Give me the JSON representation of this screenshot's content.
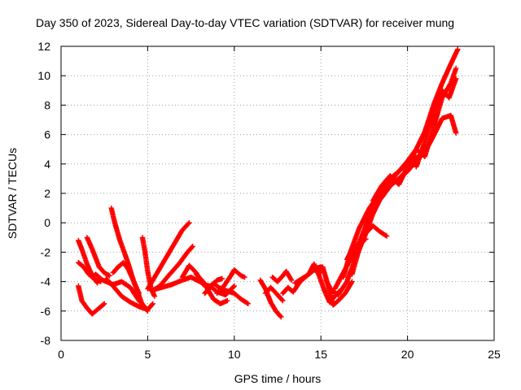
{
  "chart_data": {
    "type": "scatter",
    "title": "Day 350 of 2023, Sidereal Day-to-day VTEC variation (SDTVAR) for receiver mung",
    "xlabel": "GPS time / hours",
    "ylabel": "SDTVAR / TECUs",
    "xlim": [
      0,
      25
    ],
    "ylim": [
      -8,
      12
    ],
    "xticks": [
      0,
      5,
      10,
      15,
      20,
      25
    ],
    "yticks": [
      -8,
      -6,
      -4,
      -2,
      0,
      2,
      4,
      6,
      8,
      10,
      12
    ],
    "xtick_labels": [
      "0",
      "5",
      "10",
      "15",
      "20",
      "25"
    ],
    "ytick_labels": [
      "-8",
      "-6",
      "-4",
      "-2",
      "0",
      "2",
      "4",
      "6",
      "8",
      "10",
      "12"
    ],
    "grid": true,
    "marker": "+",
    "color": "#ff0000",
    "series": [
      {
        "x": [
          1.0,
          1.2,
          1.5,
          1.8,
          2.2,
          2.5
        ],
        "y": [
          -4.3,
          -5.3,
          -5.8,
          -6.2,
          -5.8,
          -5.5
        ]
      },
      {
        "x": [
          1.0,
          1.2,
          1.5,
          1.8,
          2.1
        ],
        "y": [
          -1.2,
          -1.8,
          -2.8,
          -3.6,
          -4.1
        ]
      },
      {
        "x": [
          1.0,
          1.3,
          1.6,
          2.0,
          2.3
        ],
        "y": [
          -2.7,
          -3.0,
          -3.5,
          -3.9,
          -4.0
        ]
      },
      {
        "x": [
          1.5,
          1.8,
          2.2,
          2.5,
          2.8
        ],
        "y": [
          -1.0,
          -1.8,
          -3.0,
          -3.4,
          -3.6
        ]
      },
      {
        "x": [
          1.8,
          2.0,
          2.4,
          3.0,
          3.5,
          4.0,
          4.5,
          4.9
        ],
        "y": [
          -3.7,
          -3.5,
          -3.9,
          -4.2,
          -4.0,
          -4.4,
          -5.3,
          -5.8
        ]
      },
      {
        "x": [
          2.9,
          3.1,
          3.4,
          3.8,
          4.2,
          4.7,
          5.0
        ],
        "y": [
          1.0,
          0.0,
          -1.2,
          -2.5,
          -4.0,
          -5.6,
          -6.0
        ]
      },
      {
        "x": [
          2.6,
          3.0,
          3.5,
          4.0,
          4.5,
          5.0,
          5.3
        ],
        "y": [
          -3.8,
          -4.3,
          -5.0,
          -5.4,
          -5.7,
          -5.9,
          -5.5
        ]
      },
      {
        "x": [
          3.0,
          3.3,
          3.6,
          3.9,
          4.2,
          4.5
        ],
        "y": [
          -3.4,
          -3.0,
          -2.7,
          -3.2,
          -4.0,
          -4.8
        ]
      },
      {
        "x": [
          4.7,
          4.85,
          5.0,
          5.2,
          5.4
        ],
        "y": [
          -1.0,
          -2.0,
          -3.3,
          -4.5,
          -5.0
        ]
      },
      {
        "x": [
          5.0,
          5.5,
          6.0,
          6.5,
          7.0,
          7.4
        ],
        "y": [
          -4.5,
          -3.5,
          -2.5,
          -1.5,
          -0.5,
          0.0
        ]
      },
      {
        "x": [
          5.3,
          5.7,
          6.2,
          6.8,
          7.3,
          7.6
        ],
        "y": [
          -4.6,
          -4.3,
          -3.6,
          -2.8,
          -2.0,
          -1.6
        ]
      },
      {
        "x": [
          5.2,
          5.8,
          6.4,
          7.0,
          7.5,
          8.0
        ],
        "y": [
          -4.6,
          -4.4,
          -4.2,
          -3.9,
          -3.7,
          -4.0
        ]
      },
      {
        "x": [
          7.0,
          7.4,
          7.8,
          8.2,
          8.6,
          9.0,
          9.5,
          10.0
        ],
        "y": [
          -3.7,
          -2.9,
          -3.4,
          -4.2,
          -4.3,
          -4.7,
          -4.9,
          -4.3
        ]
      },
      {
        "x": [
          7.8,
          8.2,
          8.5,
          8.8,
          9.2,
          9.6
        ],
        "y": [
          -3.5,
          -4.0,
          -4.6,
          -5.2,
          -5.5,
          -5.3
        ]
      },
      {
        "x": [
          8.5,
          8.8,
          9.1,
          9.5,
          10.0,
          10.4,
          10.8
        ],
        "y": [
          -4.5,
          -4.1,
          -4.4,
          -4.6,
          -4.8,
          -5.2,
          -5.5
        ]
      },
      {
        "x": [
          9.0,
          9.4,
          9.8,
          10.0,
          10.4,
          10.6
        ],
        "y": [
          -4.8,
          -4.3,
          -3.6,
          -3.2,
          -3.6,
          -3.7
        ]
      },
      {
        "x": [
          8.3,
          8.6,
          9.0,
          9.3
        ],
        "y": [
          -4.8,
          -4.4,
          -3.9,
          -3.8
        ]
      },
      {
        "x": [
          11.5,
          11.8,
          12.1,
          12.4,
          12.7
        ],
        "y": [
          -3.9,
          -4.5,
          -5.4,
          -6.0,
          -6.4
        ]
      },
      {
        "x": [
          11.8,
          12.1,
          12.5,
          12.8
        ],
        "y": [
          -4.8,
          -4.4,
          -4.9,
          -5.3
        ]
      },
      {
        "x": [
          12.2,
          12.5,
          12.8,
          13.0,
          13.3
        ],
        "y": [
          -3.7,
          -4.0,
          -3.6,
          -3.3,
          -3.9
        ]
      },
      {
        "x": [
          12.8,
          13.1,
          13.4,
          13.8,
          14.2,
          14.6,
          15.0
        ],
        "y": [
          -4.8,
          -4.4,
          -4.7,
          -4.0,
          -3.6,
          -3.2,
          -3.4
        ]
      },
      {
        "x": [
          13.5,
          13.9,
          14.3,
          14.7,
          15.0
        ],
        "y": [
          -4.1,
          -3.8,
          -3.5,
          -3.1,
          -3.0
        ]
      },
      {
        "x": [
          14.3,
          14.6,
          14.9,
          15.2,
          15.5,
          15.8,
          16.2
        ],
        "y": [
          -3.5,
          -2.8,
          -3.6,
          -4.6,
          -5.4,
          -5.0,
          -4.5
        ]
      },
      {
        "x": [
          14.8,
          15.1,
          15.4,
          15.7,
          16.0,
          16.4,
          16.8
        ],
        "y": [
          -3.2,
          -3.0,
          -4.2,
          -5.6,
          -5.3,
          -4.8,
          -4.0
        ]
      },
      {
        "x": [
          15.3,
          15.6,
          16.0,
          16.5,
          17.0,
          17.5,
          18.0,
          18.5,
          19.0,
          19.5,
          20.0
        ],
        "y": [
          -3.9,
          -4.6,
          -4.9,
          -4.0,
          -2.4,
          -1.0,
          0.6,
          1.8,
          2.6,
          3.0,
          3.6
        ]
      },
      {
        "x": [
          15.8,
          16.2,
          16.7,
          17.2,
          17.6,
          18.0,
          18.4,
          18.8
        ],
        "y": [
          -4.5,
          -3.6,
          -2.5,
          -1.4,
          -0.7,
          -0.2,
          -0.6,
          -0.9
        ]
      },
      {
        "x": [
          16.3,
          16.7,
          17.2,
          17.8,
          18.4,
          19.0,
          19.6,
          20.2,
          20.6
        ],
        "y": [
          -3.7,
          -2.0,
          -0.4,
          1.0,
          2.0,
          3.0,
          3.6,
          4.2,
          4.5
        ]
      },
      {
        "x": [
          16.5,
          16.8,
          17.2,
          17.6
        ],
        "y": [
          -2.5,
          -1.8,
          -1.4,
          -1.1
        ]
      },
      {
        "x": [
          16.8,
          17.2,
          17.6,
          18.0,
          18.5,
          19.0,
          19.5,
          20.0,
          20.5,
          21.0,
          21.5,
          22.0,
          22.5,
          22.8
        ],
        "y": [
          -3.5,
          -1.8,
          -0.2,
          1.0,
          1.7,
          2.5,
          3.0,
          3.5,
          4.2,
          4.8,
          5.9,
          7.1,
          7.3,
          6.1
        ]
      },
      {
        "x": [
          17.0,
          17.5,
          18.0,
          18.5,
          19.0,
          19.5,
          20.0,
          20.5,
          21.0,
          21.5,
          22.0,
          22.5,
          22.9
        ],
        "y": [
          -2.0,
          -0.5,
          1.0,
          2.0,
          2.8,
          3.5,
          4.2,
          5.0,
          6.2,
          8.0,
          9.5,
          10.8,
          11.8
        ]
      },
      {
        "x": [
          18.0,
          18.5,
          19.0,
          19.5,
          20.0,
          20.5,
          21.0,
          21.5,
          22.0,
          22.5,
          22.8
        ],
        "y": [
          1.5,
          2.5,
          3.2,
          2.6,
          3.8,
          5.0,
          4.5,
          6.5,
          8.5,
          9.5,
          10.5
        ]
      },
      {
        "x": [
          20.5,
          21.0,
          21.5,
          22.0,
          22.4,
          22.8
        ],
        "y": [
          3.8,
          5.5,
          7.5,
          9.0,
          8.5,
          9.8
        ]
      }
    ]
  }
}
